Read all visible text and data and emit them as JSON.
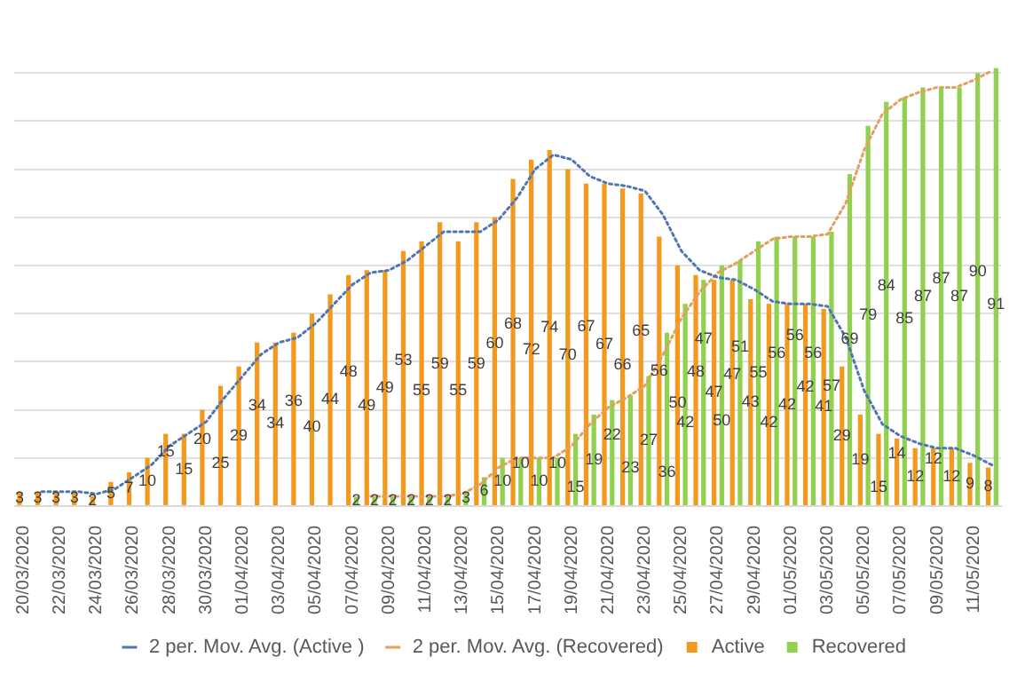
{
  "chart_data": {
    "type": "bar",
    "categories": [
      "20/03/2020",
      null,
      "22/03/2020",
      null,
      "24/03/2020",
      null,
      "26/03/2020",
      null,
      "28/03/2020",
      null,
      "30/03/2020",
      null,
      "01/04/2020",
      null,
      "03/04/2020",
      null,
      "05/04/2020",
      null,
      "07/04/2020",
      null,
      "09/04/2020",
      null,
      "11/04/2020",
      null,
      "13/04/2020",
      null,
      "15/04/2020",
      null,
      "17/04/2020",
      null,
      "19/04/2020",
      null,
      "21/04/2020",
      null,
      "23/04/2020",
      null,
      "25/04/2020",
      null,
      "27/04/2020",
      null,
      "29/04/2020",
      null,
      "01/05/2020",
      null,
      "03/05/2020",
      null,
      "05/05/2020",
      null,
      "07/05/2020",
      null,
      "09/05/2020",
      null,
      "11/05/2020",
      null
    ],
    "series": [
      {
        "name": "Active",
        "color": "#f39a1e",
        "values": [
          3,
          3,
          3,
          3,
          2,
          5,
          7,
          10,
          15,
          15,
          20,
          25,
          29,
          34,
          34,
          36,
          40,
          44,
          48,
          49,
          49,
          53,
          55,
          59,
          55,
          59,
          60,
          68,
          72,
          74,
          70,
          67,
          67,
          66,
          65,
          56,
          50,
          48,
          47,
          47,
          43,
          42,
          42,
          42,
          41,
          29,
          19,
          15,
          14,
          12,
          12,
          12,
          9,
          8
        ],
        "value_labels": [
          "3",
          "3",
          "3",
          "3",
          "2",
          "5",
          "7",
          "10",
          "15",
          "15",
          "20",
          "25",
          "29",
          "34",
          "34",
          "36",
          "40",
          "44",
          "48",
          "49",
          "49",
          "53",
          "55",
          "59",
          "55",
          "59",
          "60",
          "68",
          "72",
          "74",
          "70",
          "67",
          "67",
          "66",
          "65",
          "56",
          "50",
          "48",
          "47",
          "47",
          "43",
          "42",
          "42",
          "42",
          "41",
          "29",
          "19",
          "15",
          "14",
          "12",
          "12",
          "12",
          "9",
          "8"
        ]
      },
      {
        "name": "Recovered",
        "color": "#92d050",
        "values": [
          null,
          null,
          null,
          null,
          null,
          null,
          null,
          null,
          null,
          null,
          null,
          null,
          null,
          null,
          null,
          null,
          null,
          null,
          2,
          2,
          2,
          2,
          2,
          2,
          3,
          6,
          10,
          10,
          10,
          10,
          15,
          19,
          22,
          23,
          27,
          36,
          42,
          47,
          50,
          51,
          55,
          56,
          56,
          56,
          57,
          69,
          79,
          84,
          85,
          87,
          87,
          87,
          90,
          91
        ],
        "value_labels": [
          null,
          null,
          null,
          null,
          null,
          null,
          null,
          null,
          null,
          null,
          null,
          null,
          null,
          null,
          null,
          null,
          null,
          null,
          "2",
          "2",
          "2",
          "2",
          "2",
          "2",
          "3",
          "6",
          "10",
          "10",
          "10",
          "10",
          "15",
          "19",
          "22",
          "23",
          "27",
          "36",
          "42",
          "47",
          "50",
          "51",
          "55",
          "56",
          "56",
          "56",
          "57",
          "69",
          "79",
          "84",
          "85",
          "87",
          "87",
          "87",
          "90",
          "91"
        ]
      },
      {
        "name": "2 per. Mov. Avg. (Active )",
        "type": "line",
        "line_style": "dotted",
        "color": "#4f75b3",
        "values": [
          null,
          3,
          3,
          3,
          2.5,
          3.5,
          6,
          8.5,
          12.5,
          15,
          17.5,
          22.5,
          27,
          31.5,
          34,
          35,
          38,
          42,
          46,
          48.5,
          49,
          51,
          54,
          57,
          57,
          57,
          59.5,
          64,
          70,
          73,
          72,
          68.5,
          67,
          66.5,
          65.5,
          60.5,
          53,
          49,
          47.5,
          47,
          45,
          42.5,
          42,
          42,
          41.5,
          35,
          24,
          17,
          14.5,
          13,
          12,
          12,
          10.5,
          8.5
        ]
      },
      {
        "name": "2 per. Mov. Avg. (Recovered)",
        "type": "line",
        "line_style": "dotted",
        "color": "#e0a060",
        "values": [
          null,
          null,
          null,
          null,
          null,
          null,
          null,
          null,
          null,
          null,
          null,
          null,
          null,
          null,
          null,
          null,
          null,
          null,
          null,
          2,
          2,
          2,
          2,
          2,
          2.5,
          4.5,
          8,
          10,
          10,
          10,
          12.5,
          17,
          20.5,
          22.5,
          25,
          31.5,
          39,
          44.5,
          48.5,
          50.5,
          53,
          55.5,
          56,
          56,
          56.5,
          63,
          74,
          81.5,
          84.5,
          86,
          87,
          87,
          88.5,
          90.5
        ]
      }
    ],
    "yticks": [
      {
        "value": 0,
        "label": null
      },
      {
        "value": 10,
        "label": null
      },
      {
        "value": 20,
        "label": null
      },
      {
        "value": 30,
        "label": null
      },
      {
        "value": 40,
        "label": null
      },
      {
        "value": 50,
        "label": null
      },
      {
        "value": 60,
        "label": null
      },
      {
        "value": 70,
        "label": null
      },
      {
        "value": 80,
        "label": null
      },
      {
        "value": 90,
        "label": null
      }
    ],
    "tick_labels": "x",
    "grid": "y",
    "legend": "bottom",
    "marker": "none"
  }
}
